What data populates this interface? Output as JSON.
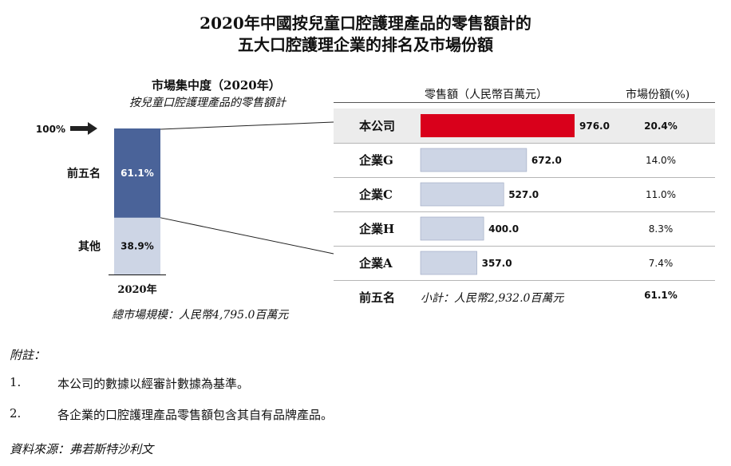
{
  "title": {
    "line1": "2020年中國按兒童口腔護理產品的零售額計的",
    "line2": "五大口腔護理企業的排名及市場份額"
  },
  "left_panel": {
    "title": "市場集中度（2020年）",
    "subtitle": "按兒童口腔護理產品的零售額計",
    "marker_label": "100%",
    "segment_labels": [
      "前五名",
      "其他"
    ],
    "x_label": "2020年",
    "footnote": "總市場規模：人民幣4,795.0百萬元"
  },
  "right_panel": {
    "col_sales_header": "零售額（人民幣百萬元）",
    "col_share_header": "市場份額(%)",
    "total_row": {
      "label": "前五名",
      "subtotal": "小計：人民幣2,932.0百萬元",
      "share": "61.1%"
    }
  },
  "chart_data": [
    {
      "type": "bar",
      "stacked": true,
      "categories": [
        "2020年"
      ],
      "series": [
        {
          "name": "前五名",
          "values": [
            61.1
          ]
        },
        {
          "name": "其他",
          "values": [
            38.9
          ]
        }
      ],
      "value_labels": [
        "61.1%",
        "38.9%"
      ],
      "ylim": [
        0,
        100
      ],
      "colors": [
        "#4a6399",
        "#cdd5e5"
      ]
    },
    {
      "type": "bar",
      "orientation": "horizontal",
      "categories": [
        "本公司",
        "企業G",
        "企業C",
        "企業H",
        "企業A"
      ],
      "values": [
        976.0,
        672.0,
        527.0,
        400.0,
        357.0
      ],
      "value_labels": [
        "976.0",
        "672.0",
        "527.0",
        "400.0",
        "357.0"
      ],
      "shares": [
        "20.4%",
        "14.0%",
        "11.0%",
        "8.3%",
        "7.4%"
      ],
      "highlight": "本公司",
      "colors": {
        "highlight": "#d9001b",
        "default": "#cdd5e5",
        "highlight_row_bg": "#ececec"
      }
    }
  ],
  "notes": {
    "heading": "附註：",
    "items": [
      {
        "num": "1.",
        "text": "本公司的數據以經審計數據為基準。"
      },
      {
        "num": "2.",
        "text": "各企業的口腔護理產品零售額包含其自有品牌產品。"
      }
    ],
    "source": "資料來源：弗若斯特沙利文"
  }
}
